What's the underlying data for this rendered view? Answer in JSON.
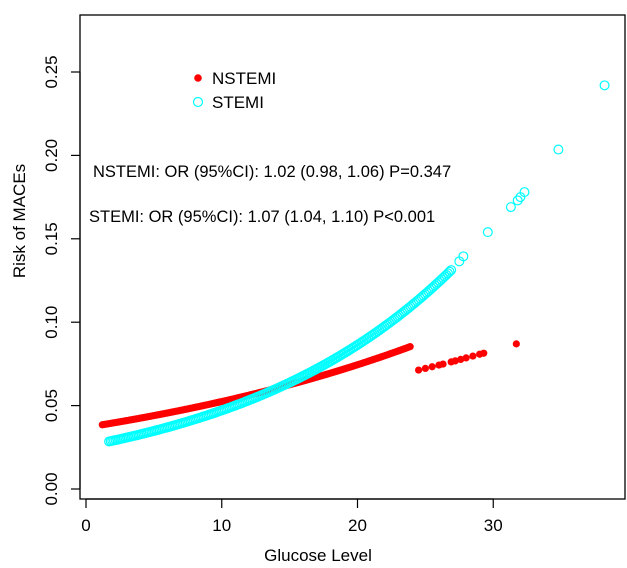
{
  "chart_data": {
    "type": "scatter",
    "xlabel": "Glucose Level",
    "ylabel": "Risk of MACEs",
    "xlim": [
      0,
      39.5
    ],
    "ylim": [
      0,
      0.28
    ],
    "x_ticks": [
      0,
      10,
      20,
      30
    ],
    "y_ticks": [
      0.0,
      0.05,
      0.1,
      0.15,
      0.2,
      0.25
    ],
    "x_tick_labels": [
      "0",
      "10",
      "20",
      "30"
    ],
    "y_tick_labels": [
      "0.00",
      "0.05",
      "0.10",
      "0.15",
      "0.20",
      "0.25"
    ],
    "grid": false,
    "legend_position": "top-left",
    "legend": [
      {
        "name": "NSTEMI",
        "marker": "filled-circle",
        "color": "#ff0000"
      },
      {
        "name": "STEMI",
        "marker": "open-circle",
        "color": "#00ffff"
      }
    ],
    "annotations": [
      "NSTEMI: OR (95%CI): 1.02 (0.98, 1.06) P=0.347",
      "STEMI: OR (95%CI): 1.07 (1.04, 1.10) P<0.001"
    ],
    "series": [
      {
        "name": "NSTEMI",
        "marker": "filled-circle",
        "color": "#ff0000",
        "continuous_range": [
          1.2,
          24.0
        ],
        "extra_points": [
          {
            "x": 24.5,
            "y": 0.0713
          },
          {
            "x": 25.0,
            "y": 0.0723
          },
          {
            "x": 25.5,
            "y": 0.0733
          },
          {
            "x": 26.0,
            "y": 0.0743
          },
          {
            "x": 26.3,
            "y": 0.0749
          },
          {
            "x": 26.9,
            "y": 0.0762
          },
          {
            "x": 27.2,
            "y": 0.0768
          },
          {
            "x": 27.6,
            "y": 0.0777
          },
          {
            "x": 28.0,
            "y": 0.0786
          },
          {
            "x": 28.5,
            "y": 0.0797
          },
          {
            "x": 29.0,
            "y": 0.0808
          },
          {
            "x": 29.3,
            "y": 0.0814
          },
          {
            "x": 31.7,
            "y": 0.087
          }
        ]
      },
      {
        "name": "STEMI",
        "marker": "open-circle",
        "color": "#00ffff",
        "continuous_range": [
          1.7,
          27.0
        ],
        "extra_points": [
          {
            "x": 27.5,
            "y": 0.1365
          },
          {
            "x": 27.8,
            "y": 0.1395
          },
          {
            "x": 29.6,
            "y": 0.154
          },
          {
            "x": 31.3,
            "y": 0.169
          },
          {
            "x": 31.8,
            "y": 0.173
          },
          {
            "x": 32.0,
            "y": 0.175
          },
          {
            "x": 32.3,
            "y": 0.178
          },
          {
            "x": 34.8,
            "y": 0.2035
          },
          {
            "x": 38.2,
            "y": 0.242
          }
        ]
      }
    ]
  }
}
